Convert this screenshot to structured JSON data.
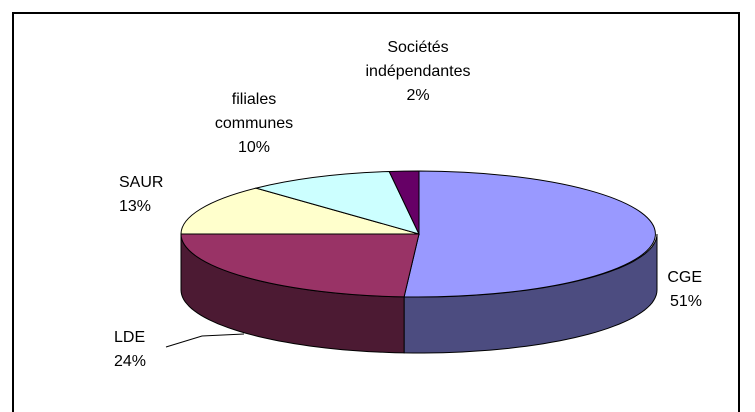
{
  "chart_data": {
    "type": "pie",
    "title": "",
    "style": "3d-exploded-none",
    "slices": [
      {
        "label_lines": [
          "CGE",
          "51%"
        ],
        "value": 51,
        "color": "#9999ff",
        "side_color": "#4c4c80"
      },
      {
        "label_lines": [
          "LDE",
          "24%"
        ],
        "value": 24,
        "color": "#993366",
        "side_color": "#4c1a33"
      },
      {
        "label_lines": [
          "SAUR",
          "13%"
        ],
        "value": 13,
        "color": "#ffffcc",
        "side_color": "#808066"
      },
      {
        "label_lines": [
          "filiales",
          "communes",
          "10%"
        ],
        "value": 10,
        "color": "#ccffff",
        "side_color": "#668080"
      },
      {
        "label_lines": [
          "Sociétés",
          "indépendantes",
          "2%"
        ],
        "value": 2,
        "color": "#660066",
        "side_color": "#330033"
      }
    ],
    "legend": "none"
  }
}
